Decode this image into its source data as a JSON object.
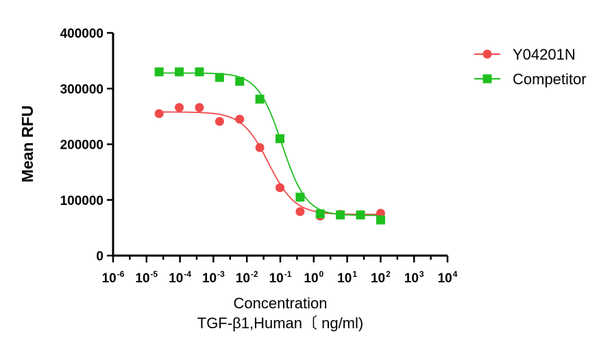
{
  "chart_data": {
    "type": "scatter",
    "title": "",
    "xlabel_lines": [
      "Concentration",
      "TGF-β1,Human〔 ng/ml)"
    ],
    "ylabel": "Mean RFU",
    "x_scale": "log10",
    "xlim_exponents": [
      -6,
      4
    ],
    "x_tick_labels": [
      {
        "base": "10",
        "exp": "-6"
      },
      {
        "base": "10",
        "exp": "-5"
      },
      {
        "base": "10",
        "exp": "-4"
      },
      {
        "base": "10",
        "exp": "-3"
      },
      {
        "base": "10",
        "exp": "-2"
      },
      {
        "base": "10",
        "exp": "-1"
      },
      {
        "base": "10",
        "exp": "0"
      },
      {
        "base": "10",
        "exp": "1"
      },
      {
        "base": "10",
        "exp": "2"
      },
      {
        "base": "10",
        "exp": "3"
      },
      {
        "base": "10",
        "exp": "4"
      }
    ],
    "ylim": [
      0,
      400000
    ],
    "y_ticks": [
      0,
      100000,
      200000,
      300000,
      400000
    ],
    "y_tick_labels": [
      "0",
      "100000",
      "200000",
      "300000",
      "400000"
    ],
    "grid": false,
    "legend_position": "top-right",
    "series": [
      {
        "name": "Y04201N",
        "color": "#f04a4a",
        "marker": "circle",
        "x": [
          2.38e-05,
          9.53e-05,
          0.000381,
          0.00153,
          0.0061,
          0.0244,
          0.0977,
          0.391,
          1.56,
          6.25,
          25,
          100
        ],
        "y": [
          255000,
          266000,
          266000,
          241000,
          245000,
          194000,
          122000,
          79000,
          71000,
          74000,
          73000,
          76000
        ],
        "fit": {
          "top": 258000,
          "bottom": 74000,
          "logEC50": -1.35,
          "hill": 1.1
        }
      },
      {
        "name": "Competitor",
        "color": "#1fbf1f",
        "marker": "square",
        "x": [
          2.38e-05,
          9.53e-05,
          0.000381,
          0.00153,
          0.0061,
          0.0244,
          0.0977,
          0.391,
          1.56,
          6.25,
          25,
          100
        ],
        "y": [
          330000,
          330000,
          330000,
          320000,
          313000,
          281000,
          210000,
          105000,
          75000,
          73000,
          73000,
          64000
        ],
        "fit": {
          "top": 328000,
          "bottom": 72000,
          "logEC50": -0.95,
          "hill": 1.2
        }
      }
    ]
  }
}
